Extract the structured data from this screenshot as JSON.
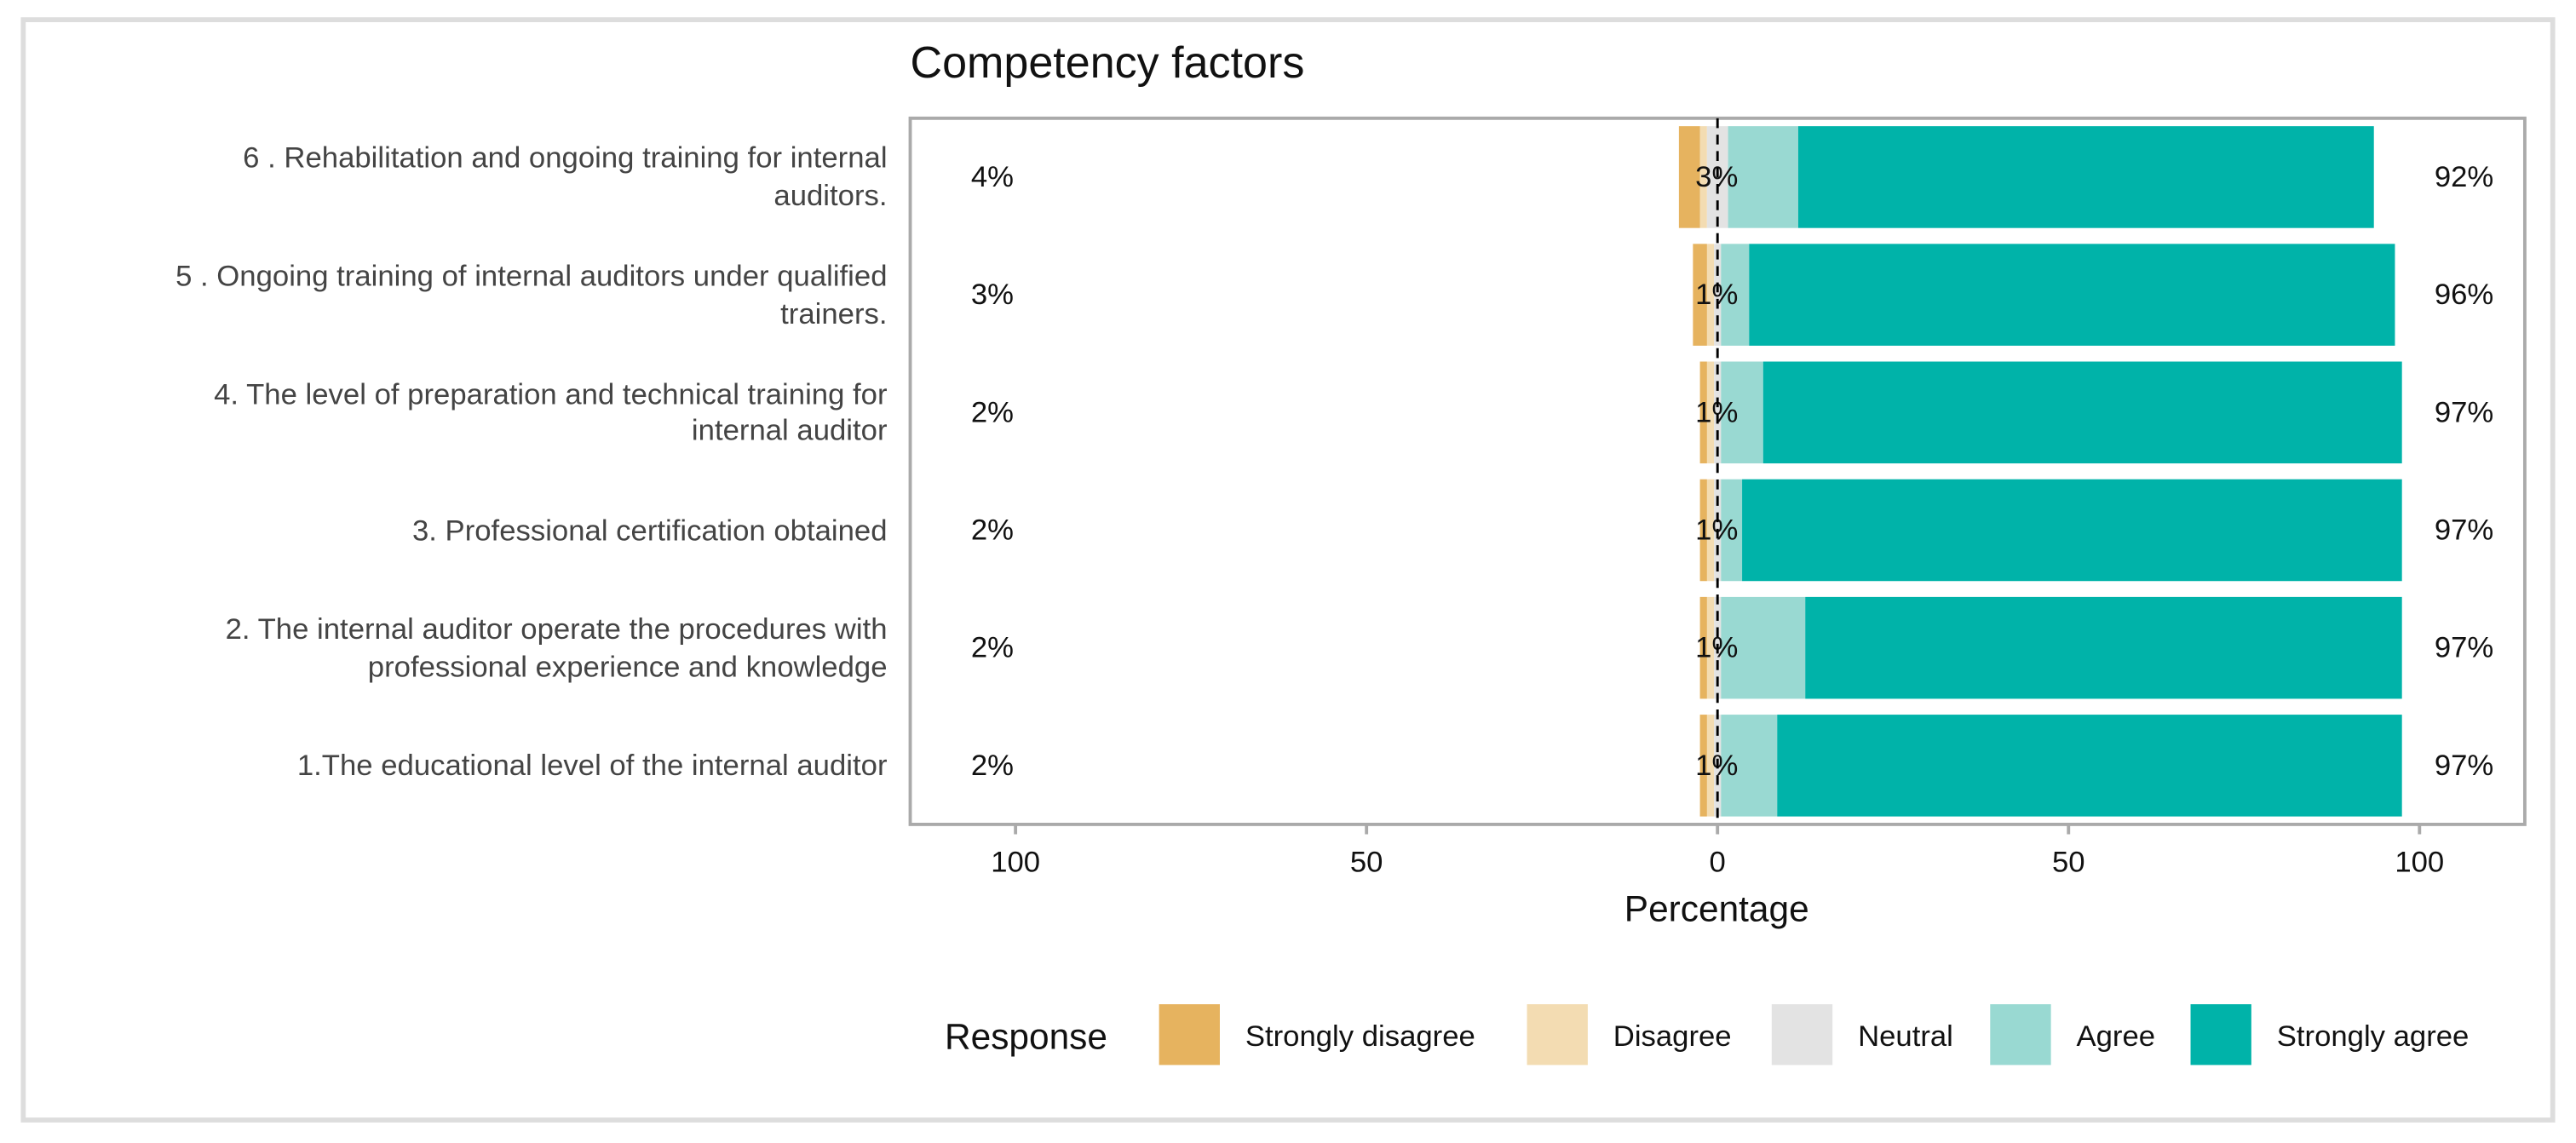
{
  "chart_data": {
    "type": "diverging_bar",
    "title": "Competency factors",
    "x_label": "Percentage",
    "legend_title": "Response",
    "categories": [
      "6 . Rehabilitation and ongoing training for internal\nauditors.",
      "5 . Ongoing training of internal auditors under qualified\ntrainers.",
      "4. The level of preparation and technical training for\ninternal auditor",
      "3. Professional certification obtained",
      "2. The internal auditor operate the procedures with\nprofessional experience and knowledge",
      "1.The educational level of the internal auditor"
    ],
    "series": [
      {
        "name": "Strongly disagree",
        "color": "#e6b35f",
        "values": [
          3,
          2,
          1,
          1,
          1,
          1
        ]
      },
      {
        "name": "Disagree",
        "color": "#f3dcb2",
        "values": [
          1,
          1,
          1,
          1,
          1,
          1
        ]
      },
      {
        "name": "Neutral",
        "color": "#e3e3e3",
        "values": [
          3,
          1,
          1,
          1,
          1,
          1
        ]
      },
      {
        "name": "Agree",
        "color": "#99d9d2",
        "values": [
          10,
          4,
          6,
          3,
          12,
          8
        ]
      },
      {
        "name": "Strongly agree",
        "color": "#00b3a9",
        "values": [
          82,
          92,
          91,
          94,
          85,
          89
        ]
      }
    ],
    "totals": {
      "disagree": [
        4,
        3,
        2,
        2,
        2,
        2
      ],
      "neutral": [
        3,
        1,
        1,
        1,
        1,
        1
      ],
      "agree": [
        92,
        96,
        97,
        97,
        97,
        97
      ]
    },
    "total_labels": {
      "disagree": [
        "4%",
        "3%",
        "2%",
        "2%",
        "2%",
        "2%"
      ],
      "neutral": [
        "3%",
        "1%",
        "1%",
        "1%",
        "1%",
        "1%"
      ],
      "agree": [
        "92%",
        "96%",
        "97%",
        "97%",
        "97%",
        "97%"
      ]
    },
    "xlim": [
      -115,
      115
    ],
    "xticks": [
      {
        "value": -100,
        "label": "100"
      },
      {
        "value": -50,
        "label": "50"
      },
      0,
      50,
      100
    ],
    "legend": "bottom"
  }
}
